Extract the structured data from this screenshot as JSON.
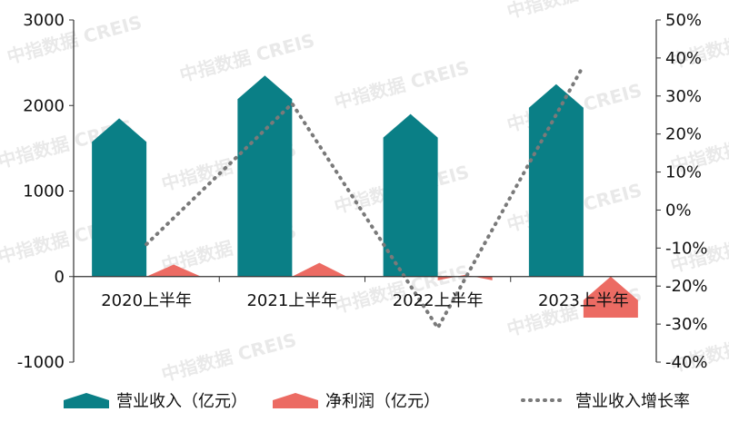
{
  "watermark": "中指数据 CREIS",
  "chart_data": {
    "type": "bar",
    "categories": [
      "2020上半年",
      "2021上半年",
      "2022上半年",
      "2023上半年"
    ],
    "series": [
      {
        "name": "营业收入（亿元）",
        "kind": "bar",
        "axis": "left",
        "color": "#0a7f86",
        "values": [
          1850,
          2350,
          1900,
          2250
        ]
      },
      {
        "name": "净利润（亿元）",
        "kind": "bar",
        "axis": "left",
        "color": "#ec6b63",
        "values": [
          140,
          160,
          20,
          -480
        ]
      },
      {
        "name": "营业收入增长率",
        "kind": "line",
        "axis": "right",
        "color": "#7a7a7a",
        "values": [
          -9,
          28,
          -31,
          38
        ]
      }
    ],
    "y_left": {
      "ylim": [
        -1000,
        3000
      ],
      "ticks": [
        "-1000",
        "0",
        "1000",
        "2000",
        "3000"
      ]
    },
    "y_right": {
      "ylim": [
        -40,
        50
      ],
      "ticks": [
        "-40%",
        "-30%",
        "-20%",
        "-10%",
        "0%",
        "10%",
        "20%",
        "30%",
        "40%",
        "50%"
      ]
    },
    "legend": "bottom",
    "grid": false
  }
}
